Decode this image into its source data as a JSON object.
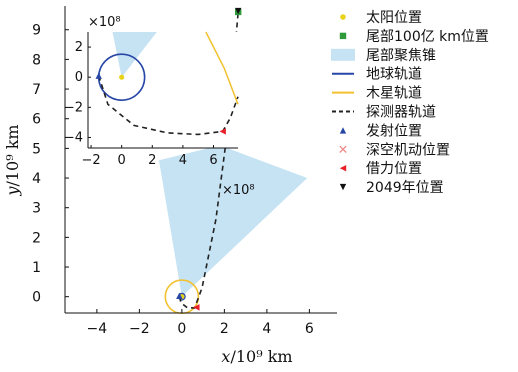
{
  "chart_data": [
    {
      "type": "scatter",
      "xlabel_var": "x",
      "xlabel_unit": "/10⁹ km",
      "ylabel_var": "y",
      "ylabel_unit": "/10⁹ km",
      "xlim": [
        -5.5,
        7.3
      ],
      "ylim": [
        -0.55,
        9.8
      ],
      "xticks": [
        -4,
        -2,
        0,
        2,
        4,
        6
      ],
      "yticks": [
        0,
        1,
        2,
        3,
        4,
        5,
        6,
        7,
        8,
        9
      ],
      "legend_position": "right",
      "series": [
        {
          "name": "太阳位置",
          "marker": "circle",
          "color": "#e8d21a",
          "points": [
            [
              0,
              0
            ]
          ]
        },
        {
          "name": "尾部100亿 km位置",
          "marker": "square",
          "color": "#2e9a3a",
          "points": [
            [
              2.65,
              9.6
            ]
          ]
        },
        {
          "name": "尾部聚焦锥",
          "marker": "area",
          "color": "#c6e3f3",
          "points": [
            [
              0,
              0
            ],
            [
              -1.08,
              4.6
            ],
            [
              1.8,
              5.1
            ],
            [
              5.9,
              4.0
            ]
          ]
        },
        {
          "name": "地球轨道",
          "marker": "line",
          "color": "#2747a6",
          "points": []
        },
        {
          "name": "木星轨道",
          "marker": "line",
          "color": "#f2c12e",
          "points": []
        },
        {
          "name": "探测器轨道",
          "marker": "dashed",
          "color": "#222222",
          "points": [
            [
              -0.1,
              0
            ],
            [
              -0.05,
              -0.2
            ],
            [
              0.25,
              -0.37
            ],
            [
              0.6,
              -0.38
            ],
            [
              0.95,
              0.3
            ],
            [
              1.6,
              2.6
            ],
            [
              2.2,
              5.9
            ],
            [
              2.65,
              9.6
            ]
          ]
        },
        {
          "name": "发射位置",
          "marker": "triangle-up",
          "color": "#2747a6",
          "points": [
            [
              -0.12,
              0.03
            ]
          ]
        },
        {
          "name": "深空机动位置",
          "marker": "x",
          "color": "#f08a8a",
          "points": []
        },
        {
          "name": "借力位置",
          "marker": "triangle-left",
          "color": "#e8202a",
          "points": [
            [
              0.68,
              -0.36
            ]
          ]
        },
        {
          "name": "2049年位置",
          "marker": "triangle-down",
          "color": "#111111",
          "points": [
            [
              2.65,
              9.63
            ]
          ]
        }
      ],
      "annotations": [
        "×10⁸"
      ]
    },
    {
      "type": "scatter",
      "multiplier": "×10⁸",
      "xlim": [
        -2.2,
        7.6
      ],
      "ylim": [
        -4.7,
        3.0
      ],
      "xticks": [
        -2,
        0,
        2,
        4,
        6
      ],
      "yticks": [
        -4,
        -2,
        0,
        2
      ],
      "series": [
        {
          "name": "太阳位置",
          "points": [
            [
              0,
              0
            ]
          ]
        },
        {
          "name": "尾部聚焦锥",
          "points": [
            [
              0,
              0
            ],
            [
              -0.6,
              3.0
            ],
            [
              2.3,
              3.0
            ]
          ]
        },
        {
          "name": "地球轨道",
          "radius": 1.5,
          "points": []
        },
        {
          "name": "木星轨道",
          "points": [
            [
              5.5,
              3.0
            ],
            [
              6.7,
              0.6
            ],
            [
              7.6,
              -1.8
            ]
          ]
        },
        {
          "name": "探测器轨道",
          "points": [
            [
              -1.5,
              0.1
            ],
            [
              -0.9,
              -1.8
            ],
            [
              0.8,
              -3.2
            ],
            [
              3.0,
              -3.7
            ],
            [
              5.0,
              -3.8
            ],
            [
              6.6,
              -3.6
            ],
            [
              7.1,
              -2.7
            ],
            [
              7.6,
              -1.3
            ]
          ]
        },
        {
          "name": "发射位置",
          "points": [
            [
              -1.5,
              0.1
            ]
          ]
        },
        {
          "name": "借力位置",
          "points": [
            [
              6.6,
              -3.6
            ]
          ]
        }
      ]
    }
  ]
}
